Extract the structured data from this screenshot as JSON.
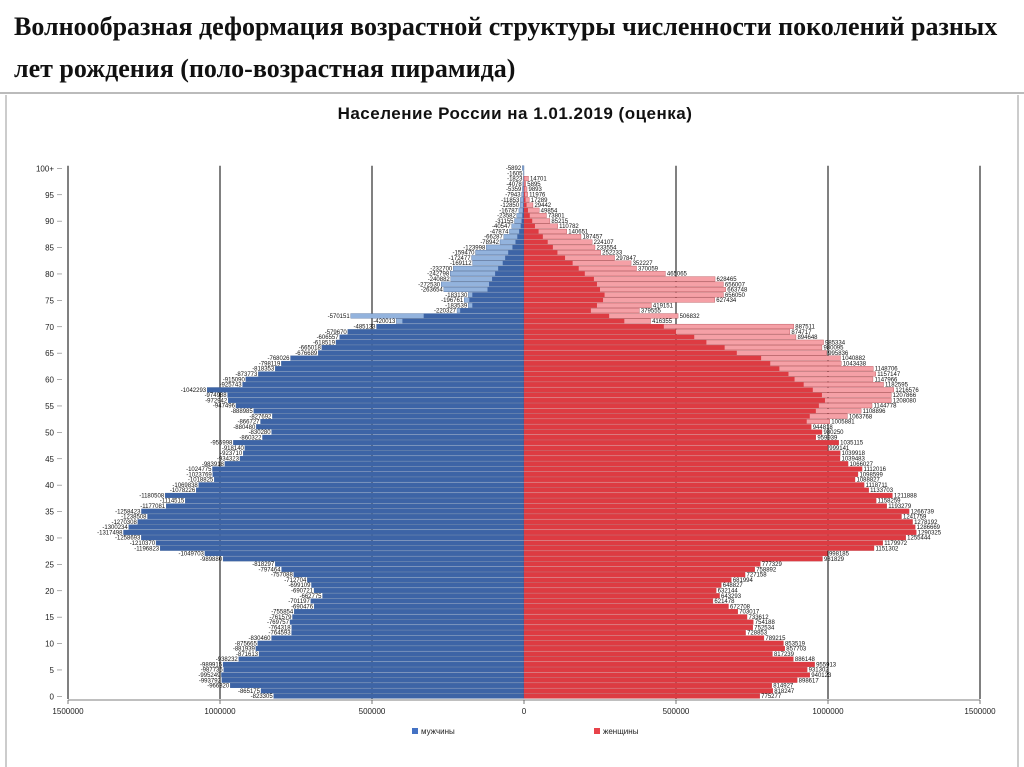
{
  "slide": {
    "title": "Волнообразная деформация возрастной структуры численности поколений разных лет рождения (поло-возрастная пирамида)"
  },
  "chart_data": {
    "type": "bar",
    "orientation": "horizontal-pyramid",
    "title": "Население России на 1.01.2019 (оценка)",
    "x_range": [
      -1500000,
      1500000
    ],
    "x_ticks": [
      -1500000,
      -1000000,
      -500000,
      0,
      500000,
      1000000,
      1500000
    ],
    "x_tick_labels": [
      "1500000",
      "1000000",
      "500000",
      "0",
      "500000",
      "1000000",
      "1500000"
    ],
    "y_tick_labels": [
      "0",
      "5",
      "10",
      "15",
      "20",
      "25",
      "30",
      "35",
      "40",
      "45",
      "50",
      "55",
      "60",
      "65",
      "70",
      "75",
      "80",
      "85",
      "90",
      "95",
      "100+"
    ],
    "ages": [
      "0",
      "1",
      "2",
      "3",
      "4",
      "5",
      "6",
      "7",
      "8",
      "9",
      "10",
      "11",
      "12",
      "13",
      "14",
      "15",
      "16",
      "17",
      "18",
      "19",
      "20",
      "21",
      "22",
      "23",
      "24",
      "25",
      "26",
      "27",
      "28",
      "29",
      "30",
      "31",
      "32",
      "33",
      "34",
      "35",
      "36",
      "37",
      "38",
      "39",
      "40",
      "41",
      "42",
      "43",
      "44",
      "45",
      "46",
      "47",
      "48",
      "49",
      "50",
      "51",
      "52",
      "53",
      "54",
      "55",
      "56",
      "57",
      "58",
      "59",
      "60",
      "61",
      "62",
      "63",
      "64",
      "65",
      "66",
      "67",
      "68",
      "69",
      "70",
      "71",
      "72",
      "73",
      "74",
      "75",
      "76",
      "77",
      "78",
      "79",
      "80",
      "81",
      "82",
      "83",
      "84",
      "85",
      "86",
      "87",
      "88",
      "89",
      "90",
      "91",
      "92",
      "93",
      "94",
      "95",
      "96",
      "97",
      "98",
      "99",
      "100+"
    ],
    "legend": [
      {
        "label": "мужчины",
        "color": "#4472c4"
      },
      {
        "label": "женщины",
        "color": "#e8434a"
      }
    ],
    "male_labels": [
      "-823305",
      "-865175",
      "-966320",
      "-993792",
      "-995249",
      "-987736",
      "-989915",
      "-938232",
      "-871613",
      "-881939",
      "-875665",
      "-830460",
      "-764593",
      "-764318",
      "-769757",
      "-761579",
      "-755854",
      "-690476",
      "-701197",
      "-662775",
      "-690721",
      "-699109",
      "-712704",
      "-757088",
      "-797464",
      "-818297",
      "-989880",
      "-1049703",
      "-1196823",
      "-1210370",
      "-1258693",
      "-1317498",
      "-1300234",
      "-1270308",
      "-1238508",
      "-1258423",
      "-1177081",
      "-1114515",
      "-1180508",
      "-1078226",
      "-1069838",
      "-1018825",
      "-1023769",
      "-1024775",
      "-983918",
      "-934323",
      "-923710",
      "-918140",
      "-955998",
      "-860322",
      "-830280",
      "-880480",
      "-866727",
      "-827692",
      "-888985",
      "-947496",
      "-972942",
      "-974988",
      "-1042293",
      "-925743",
      "-915090",
      "-873773",
      "-818353",
      "-798119",
      "-768026",
      "-676689",
      "-665018",
      "-618519",
      "-606557",
      "-579670",
      "-485133",
      "-420013",
      "-570151",
      "-220327",
      "-183539",
      "-196761",
      "-183130",
      "-263654",
      "-272530",
      "-240882",
      "-242798",
      "-232700",
      "-169112",
      "-172477",
      "-159470",
      "-123998",
      "-78942",
      "-66287",
      "-47874",
      "-40547",
      "-31155",
      "-23582",
      "-16787",
      "-12850",
      "-11853",
      "-7943",
      "-5359",
      "-4078",
      "-1823",
      "-1605",
      "-5892"
    ],
    "female_labels": [
      "775277",
      "818247",
      "814927",
      "898617",
      "940123",
      "931302",
      "955913",
      "886148",
      "817239",
      "857703",
      "853519",
      "789215",
      "728853",
      "752534",
      "754188",
      "733612",
      "703017",
      "672708",
      "621478",
      "643293",
      "632144",
      "648827",
      "681994",
      "727158",
      "758892",
      "777329",
      "981829",
      "998185",
      "1151302",
      "1179972",
      "1255444",
      "1290325",
      "1286669",
      "1278192",
      "1241759",
      "1266739",
      "1193279",
      "1158259",
      "1211888",
      "1133703",
      "1118711",
      "1088827",
      "1098599",
      "1112016",
      "1066027",
      "1039483",
      "1039918",
      "999141",
      "1035115",
      "959939",
      "980250",
      "944818",
      "1005881",
      "1063768",
      "1108896",
      "1144778",
      "1208080",
      "1207866",
      "1216576",
      "1182595",
      "1147966",
      "1157147",
      "1148706",
      "1043438",
      "1040882",
      "995836",
      "980095",
      "985334",
      "894648",
      "874717",
      "887511",
      "416355",
      "506832",
      "379555",
      "419151",
      "627434",
      "656050",
      "663748",
      "656007",
      "628465",
      "465065",
      "370059",
      "352227",
      "297847",
      "252233",
      "233554",
      "224107",
      "187457",
      "140651",
      "110782",
      "85215",
      "73801",
      "49854",
      "29442",
      "17289",
      "11976",
      "9893",
      "5895",
      "14701"
    ],
    "male_current": [
      823305,
      865175,
      966320,
      993792,
      995249,
      987736,
      989915,
      938232,
      871613,
      881939,
      875665,
      830460,
      764593,
      764318,
      769757,
      761579,
      755854,
      690476,
      701197,
      662775,
      690721,
      699109,
      712704,
      757088,
      797464,
      818297,
      989880,
      1049703,
      1196823,
      1210370,
      1258693,
      1317498,
      1300234,
      1270308,
      1238508,
      1258423,
      1177081,
      1114515,
      1180508,
      1078226,
      1069838,
      1018825,
      1023769,
      1024775,
      983918,
      934323,
      923710,
      918140,
      955998,
      860322,
      830280,
      880480,
      866727,
      827692,
      888985,
      947496,
      972942,
      974988,
      1042293,
      925743,
      915090,
      873773,
      818353,
      798119,
      768026,
      676689,
      665018,
      618519,
      606557,
      579670,
      485133,
      420013,
      570151,
      220327,
      183539,
      196761,
      183130,
      263654,
      272530,
      240882,
      242798,
      232700,
      169112,
      172477,
      159470,
      123998,
      78942,
      66287,
      47874,
      40547,
      31155,
      23582,
      16787,
      12850,
      11853,
      7943,
      5359,
      4078,
      1823,
      1605,
      5892
    ],
    "female_current": [
      775277,
      818247,
      814927,
      898617,
      940123,
      931302,
      955913,
      886148,
      817239,
      857703,
      853519,
      789215,
      728853,
      752534,
      754188,
      733612,
      703017,
      672708,
      621478,
      643293,
      632144,
      648827,
      681994,
      727158,
      758892,
      777329,
      981829,
      998185,
      1151302,
      1179972,
      1255444,
      1290325,
      1286669,
      1278192,
      1241759,
      1266739,
      1193279,
      1158259,
      1211888,
      1133703,
      1118711,
      1088827,
      1098599,
      1112016,
      1066027,
      1039483,
      1039918,
      999141,
      1035115,
      959939,
      980250,
      944818,
      1005881,
      1063768,
      1108896,
      1144778,
      1208080,
      1207866,
      1216576,
      1182595,
      1147966,
      1157147,
      1148706,
      1043438,
      1040882,
      995836,
      980095,
      985334,
      894648,
      874717,
      887511,
      416355,
      506832,
      379555,
      419151,
      627434,
      656050,
      663748,
      656007,
      628465,
      465065,
      370059,
      352227,
      297847,
      252233,
      233554,
      224107,
      187457,
      140651,
      110782,
      85215,
      73801,
      49854,
      29442,
      17289,
      11976,
      9893,
      5895,
      14701
    ],
    "male_inner": [
      823305,
      865175,
      966320,
      993792,
      995249,
      987736,
      989915,
      938232,
      871613,
      881939,
      875665,
      830460,
      764593,
      764318,
      769757,
      761579,
      755854,
      690476,
      701197,
      662775,
      690721,
      699109,
      712704,
      757088,
      797464,
      818297,
      989880,
      1049703,
      1196823,
      1210370,
      1258693,
      1317498,
      1300234,
      1270308,
      1238508,
      1258423,
      1177081,
      1114515,
      1180508,
      1078226,
      1069838,
      1018825,
      1023769,
      1024775,
      983918,
      934323,
      923710,
      918140,
      955998,
      860322,
      830280,
      880480,
      866727,
      827692,
      888985,
      947496,
      972942,
      974988,
      1042293,
      925743,
      915090,
      873773,
      818353,
      798119,
      768026,
      676689,
      665018,
      618519,
      606557,
      579670,
      485133,
      400000,
      330000,
      210000,
      170000,
      180000,
      170000,
      120000,
      115000,
      105000,
      95000,
      85000,
      70000,
      62000,
      52000,
      38000,
      28000,
      22000,
      16000,
      11000,
      8000,
      5500,
      3800,
      2700,
      2000,
      1300,
      900,
      600,
      300,
      200,
      500
    ],
    "female_inner": [
      775277,
      818247,
      814927,
      898617,
      940123,
      931302,
      955913,
      886148,
      817239,
      857703,
      853519,
      789215,
      728853,
      752534,
      754188,
      733612,
      703017,
      672708,
      621478,
      643293,
      632144,
      648827,
      681994,
      727158,
      758892,
      777329,
      981829,
      998185,
      1151302,
      1179972,
      1255444,
      1290325,
      1286669,
      1278192,
      1241759,
      1266739,
      1193279,
      1158259,
      1211888,
      1133703,
      1118711,
      1088827,
      1098599,
      1112016,
      1066027,
      1039483,
      1039918,
      999141,
      1035115,
      959939,
      980250,
      944818,
      930000,
      940000,
      960000,
      970000,
      990000,
      980000,
      950000,
      920000,
      890000,
      870000,
      840000,
      810000,
      780000,
      700000,
      660000,
      600000,
      560000,
      500000,
      460000,
      330000,
      280000,
      220000,
      240000,
      260000,
      265000,
      250000,
      240000,
      230000,
      200000,
      180000,
      160000,
      135000,
      110000,
      95000,
      78000,
      62000,
      48000,
      36000,
      27000,
      19000,
      13000,
      8500,
      5000,
      3000,
      1900,
      1200,
      700,
      400,
      900
    ]
  }
}
